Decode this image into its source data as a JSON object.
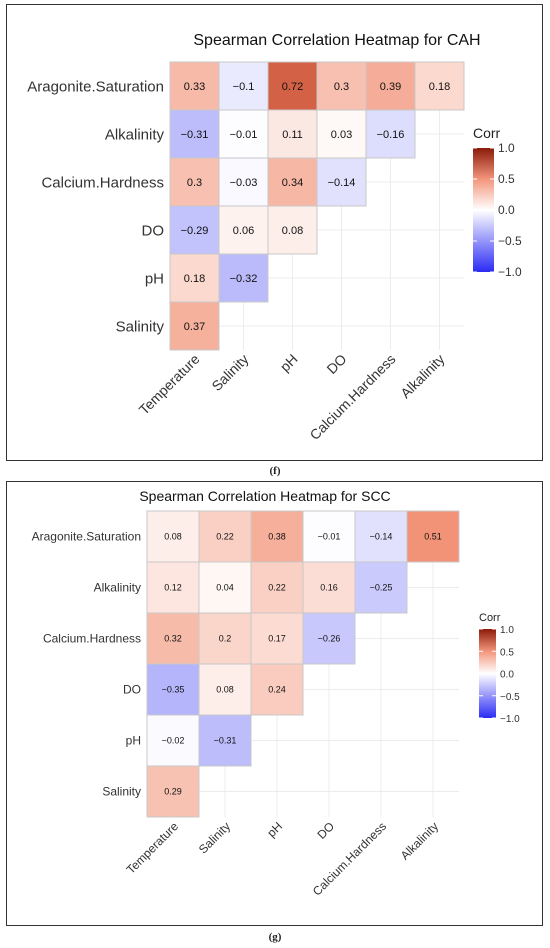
{
  "panels": [
    {
      "caption": "(f)",
      "chart_data": {
        "type": "heatmap",
        "title": "Spearman Correlation Heatmap for CAH",
        "rows": [
          "Aragonite.Saturation",
          "Alkalinity",
          "Calcium.Hardness",
          "DO",
          "pH",
          "Salinity"
        ],
        "columns": [
          "Temperature",
          "Salinity",
          "pH",
          "DO",
          "Calcium.Hardness",
          "Alkalinity"
        ],
        "values": [
          [
            0.33,
            -0.1,
            0.72,
            0.3,
            0.39,
            0.18
          ],
          [
            -0.31,
            -0.01,
            0.11,
            0.03,
            -0.16,
            null
          ],
          [
            0.3,
            -0.03,
            0.34,
            -0.14,
            null,
            null
          ],
          [
            -0.29,
            0.06,
            0.08,
            null,
            null,
            null
          ],
          [
            0.18,
            -0.32,
            null,
            null,
            null,
            null
          ],
          [
            0.37,
            null,
            null,
            null,
            null,
            null
          ]
        ],
        "labels": [
          [
            "0.33",
            "−0.1",
            "0.72",
            "0.3",
            "0.39",
            "0.18"
          ],
          [
            "−0.31",
            "−0.01",
            "0.11",
            "0.03",
            "−0.16",
            null
          ],
          [
            "0.3",
            "−0.03",
            "0.34",
            "−0.14",
            null,
            null
          ],
          [
            "−0.29",
            "0.06",
            "0.08",
            null,
            null,
            null
          ],
          [
            "0.18",
            "−0.32",
            null,
            null,
            null,
            null
          ],
          [
            "0.37",
            null,
            null,
            null,
            null,
            null
          ]
        ],
        "legend": {
          "title": "Corr",
          "ticks": [
            "1.0",
            "0.5",
            "0.0",
            "−0.5",
            "−1.0"
          ],
          "placement": "right"
        },
        "color_scale": {
          "low": "#2b2bf5",
          "mid": "#ffffff",
          "high": "#8b1a0a",
          "range": [
            -1,
            1
          ]
        },
        "grid": true
      }
    },
    {
      "caption": "(g)",
      "chart_data": {
        "type": "heatmap",
        "title": "Spearman Correlation Heatmap for SCC",
        "rows": [
          "Aragonite.Saturation",
          "Alkalinity",
          "Calcium.Hardness",
          "DO",
          "pH",
          "Salinity"
        ],
        "columns": [
          "Temperature",
          "Salinity",
          "pH",
          "DO",
          "Calcium.Hardness",
          "Alkalinity"
        ],
        "values": [
          [
            0.08,
            0.22,
            0.38,
            -0.01,
            -0.14,
            0.51
          ],
          [
            0.12,
            0.04,
            0.22,
            0.16,
            -0.25,
            null
          ],
          [
            0.32,
            0.2,
            0.17,
            -0.26,
            null,
            null
          ],
          [
            -0.35,
            0.08,
            0.24,
            null,
            null,
            null
          ],
          [
            -0.02,
            -0.31,
            null,
            null,
            null,
            null
          ],
          [
            0.29,
            null,
            null,
            null,
            null,
            null
          ]
        ],
        "labels": [
          [
            "0.08",
            "0.22",
            "0.38",
            "−0.01",
            "−0.14",
            "0.51"
          ],
          [
            "0.12",
            "0.04",
            "0.22",
            "0.16",
            "−0.25",
            null
          ],
          [
            "0.32",
            "0.2",
            "0.17",
            "−0.26",
            null,
            null
          ],
          [
            "−0.35",
            "0.08",
            "0.24",
            null,
            null,
            null
          ],
          [
            "−0.02",
            "−0.31",
            null,
            null,
            null,
            null
          ],
          [
            "0.29",
            null,
            null,
            null,
            null,
            null
          ]
        ],
        "legend": {
          "title": "Corr",
          "ticks": [
            "1.0",
            "0.5",
            "0.0",
            "−0.5",
            "−1.0"
          ],
          "placement": "right"
        },
        "color_scale": {
          "low": "#2b2bf5",
          "mid": "#ffffff",
          "high": "#8b1a0a",
          "range": [
            -1,
            1
          ]
        },
        "grid": true
      }
    }
  ]
}
